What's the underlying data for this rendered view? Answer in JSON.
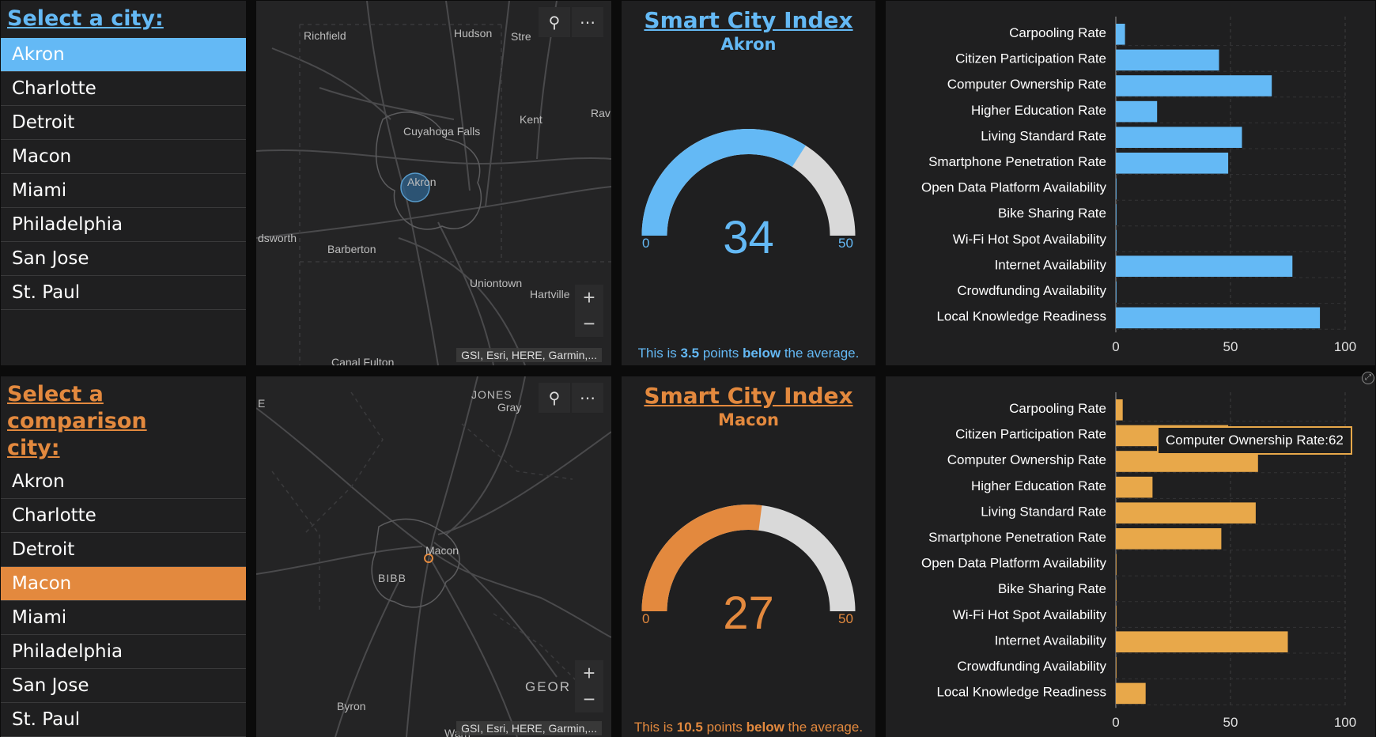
{
  "primary": {
    "accent": "#64b9f5",
    "list_title": "Select a city:",
    "cities": [
      "Akron",
      "Charlotte",
      "Detroit",
      "Macon",
      "Miami",
      "Philadelphia",
      "San Jose",
      "St. Paul"
    ],
    "selected": "Akron",
    "map": {
      "labels": [
        "Richfield",
        "Hudson",
        "Stre",
        "Kent",
        "Rav",
        "Cuyahoga Falls",
        "Akron",
        "dsworth",
        "Barberton",
        "Uniontown",
        "Hartville",
        "Canal Fulton"
      ],
      "attribution": "GSI, Esri, HERE, Garmin,..."
    },
    "gauge": {
      "title": "Smart City Index",
      "city": "Akron",
      "value": 34,
      "min": "0",
      "max": "50",
      "note_pre": "This is ",
      "note_num": "3.5",
      "note_mid": " points ",
      "note_dir": "below",
      "note_post": " the average."
    }
  },
  "comparison": {
    "accent": "#e3893e",
    "bar_color": "#e8a84a",
    "list_title_line1": "Select a comparison",
    "list_title_line2": "city:",
    "cities": [
      "Akron",
      "Charlotte",
      "Detroit",
      "Macon",
      "Miami",
      "Philadelphia",
      "San Jose",
      "St. Paul"
    ],
    "selected": "Macon",
    "map": {
      "labels": [
        "E",
        "JONES",
        "Gray",
        "Macon",
        "BIBB",
        "GEOR",
        "Byron",
        "Warn"
      ],
      "attribution": "GSI, Esri, HERE, Garmin,..."
    },
    "gauge": {
      "title": "Smart City Index",
      "city": "Macon",
      "value": 27,
      "min": "0",
      "max": "50",
      "note_pre": "This is ",
      "note_num": "10.5",
      "note_mid": " points ",
      "note_dir": "below",
      "note_post": " the average."
    },
    "tooltip": "Computer Ownership Rate:62"
  },
  "chart_data": [
    {
      "type": "bar",
      "orientation": "horizontal",
      "categories": [
        "Carpooling Rate",
        "Citizen Participation Rate",
        "Computer Ownership Rate",
        "Higher Education Rate",
        "Living Standard Rate",
        "Smartphone Penetration Rate",
        "Open Data Platform Availability",
        "Bike Sharing Rate",
        "Wi-Fi Hot Spot Availability",
        "Internet Availability",
        "Crowdfunding Availability",
        "Local Knowledge Readiness"
      ],
      "values": [
        4,
        45,
        68,
        18,
        55,
        49,
        0,
        0,
        0,
        77,
        0,
        89
      ],
      "xlim": [
        0,
        100
      ],
      "xticks": [
        "0",
        "50",
        "100"
      ],
      "grid": true,
      "color": "#64b9f5"
    },
    {
      "type": "bar",
      "orientation": "horizontal",
      "categories": [
        "Carpooling Rate",
        "Citizen Participation Rate",
        "Computer Ownership Rate",
        "Higher Education Rate",
        "Living Standard Rate",
        "Smartphone Penetration Rate",
        "Open Data Platform Availability",
        "Bike Sharing Rate",
        "Wi-Fi Hot Spot Availability",
        "Internet Availability",
        "Crowdfunding Availability",
        "Local Knowledge Readiness"
      ],
      "values": [
        3,
        49,
        62,
        16,
        61,
        46,
        0,
        0,
        0,
        75,
        0,
        13
      ],
      "xlim": [
        0,
        100
      ],
      "xticks": [
        "0",
        "50",
        "100"
      ],
      "grid": true,
      "color": "#e8a84a"
    }
  ]
}
